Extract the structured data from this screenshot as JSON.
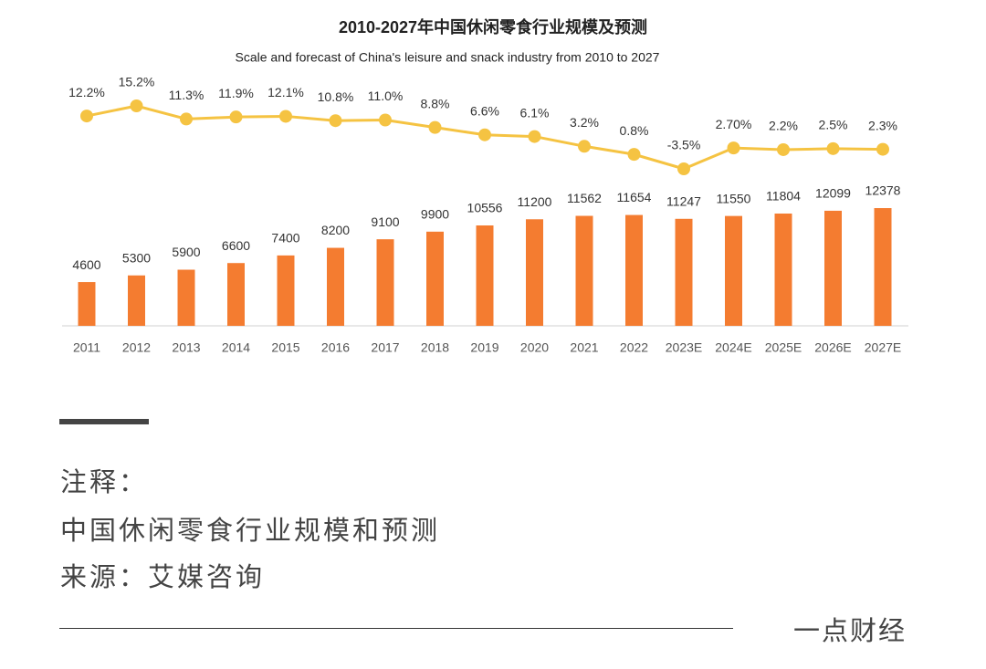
{
  "chart_data": {
    "type": "combo",
    "title": "2010-2027年中国休闲零食行业规模及预测",
    "subtitle": "Scale and forecast of China's leisure and snack industry from 2010 to 2027",
    "categories": [
      "2011",
      "2012",
      "2013",
      "2014",
      "2015",
      "2016",
      "2017",
      "2018",
      "2019",
      "2020",
      "2021",
      "2022",
      "2023E",
      "2024E",
      "2025E",
      "2026E",
      "2027E"
    ],
    "series": [
      {
        "type": "bar",
        "color": "#f47c30",
        "values": [
          4600,
          5300,
          5900,
          6600,
          7400,
          8200,
          9100,
          9900,
          10556,
          11200,
          11562,
          11654,
          11247,
          11550,
          11804,
          12099,
          12378
        ]
      },
      {
        "type": "line",
        "color": "#f5c342",
        "values": [
          12.2,
          15.2,
          11.3,
          11.9,
          12.1,
          10.8,
          11.0,
          8.8,
          6.6,
          6.1,
          3.2,
          0.8,
          -3.5,
          2.7,
          2.2,
          2.5,
          2.3
        ],
        "value_labels": [
          "12.2%",
          "15.2%",
          "11.3%",
          "11.9%",
          "12.1%",
          "10.8%",
          "11.0%",
          "8.8%",
          "6.6%",
          "6.1%",
          "3.2%",
          "0.8%",
          "-3.5%",
          "2.70%",
          "2.2%",
          "2.5%",
          "2.3%"
        ]
      }
    ]
  },
  "notes": {
    "heading": "注释：",
    "lines": [
      "中国休闲零食行业规模和预测",
      "来源：艾媒咨询"
    ]
  },
  "brand": "一点财经"
}
